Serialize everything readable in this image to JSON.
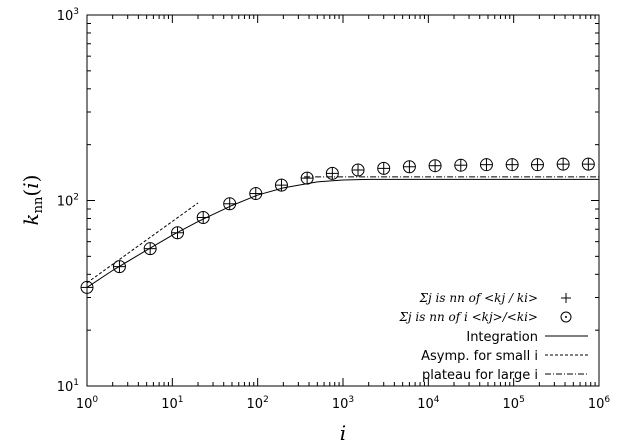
{
  "chart_data": {
    "type": "scatter",
    "xlabel": "i",
    "ylabel": "k_nn(i)",
    "xscale": "log",
    "yscale": "log",
    "xlim": [
      1,
      1000000
    ],
    "ylim": [
      10,
      1000
    ],
    "x_ticks": [
      {
        "base": "10",
        "exp": "0",
        "value": 1
      },
      {
        "base": "10",
        "exp": "1",
        "value": 10
      },
      {
        "base": "10",
        "exp": "2",
        "value": 100
      },
      {
        "base": "10",
        "exp": "3",
        "value": 1000
      },
      {
        "base": "10",
        "exp": "4",
        "value": 10000
      },
      {
        "base": "10",
        "exp": "5",
        "value": 100000
      },
      {
        "base": "10",
        "exp": "6",
        "value": 1000000
      }
    ],
    "y_ticks": [
      {
        "base": "10",
        "exp": "1",
        "value": 10
      },
      {
        "base": "10",
        "exp": "2",
        "value": 100
      },
      {
        "base": "10",
        "exp": "3",
        "value": 1000
      }
    ],
    "legend_position": "bottom-right",
    "legend": {
      "plus": "Σj is nn of <kj / ki>",
      "circle": "Σj is nn of i <kj>/<ki>",
      "integration": "Integration",
      "asymp": "Asymp. for small i",
      "plateau": "plateau for large i"
    },
    "series": [
      {
        "name": "Σj is nn of <kj / ki>",
        "marker": "plus",
        "x": [
          1,
          2.4,
          5.5,
          11.5,
          23,
          47,
          95,
          190,
          380,
          750,
          1500,
          3000,
          6000,
          12000,
          24000,
          48000,
          96000,
          190000,
          380000,
          750000
        ],
        "y": [
          34,
          44,
          55,
          67,
          81,
          96,
          109,
          121,
          132,
          140,
          146,
          149,
          152,
          154,
          155,
          156,
          156,
          156,
          157,
          157
        ]
      },
      {
        "name": "Σj is nn of i <kj>/<ki>",
        "marker": "circle",
        "x": [
          1,
          2.4,
          5.5,
          11.5,
          23,
          47,
          95,
          190,
          380,
          750,
          1500,
          3000,
          6000,
          12000,
          24000,
          48000,
          96000,
          190000,
          380000,
          750000
        ],
        "y": [
          34,
          44,
          55,
          67,
          81,
          96,
          109,
          121,
          132,
          140,
          146,
          149,
          152,
          154,
          155,
          156,
          156,
          156,
          157,
          157
        ]
      },
      {
        "name": "Integration",
        "style": "solid",
        "x": [
          1,
          2,
          5,
          10,
          20,
          50,
          100,
          200,
          500,
          1000,
          2000,
          10000,
          100000,
          1000000
        ],
        "y": [
          34,
          42,
          54,
          65,
          77,
          94,
          107,
          117,
          126,
          129,
          130,
          130,
          130,
          130
        ]
      },
      {
        "name": "Asymp. for small i",
        "style": "dashed",
        "x": [
          1,
          20
        ],
        "y": [
          36,
          97
        ]
      },
      {
        "name": "plateau for large i",
        "style": "dashdot",
        "x": [
          350,
          1000000
        ],
        "y": [
          134,
          134
        ]
      }
    ]
  }
}
